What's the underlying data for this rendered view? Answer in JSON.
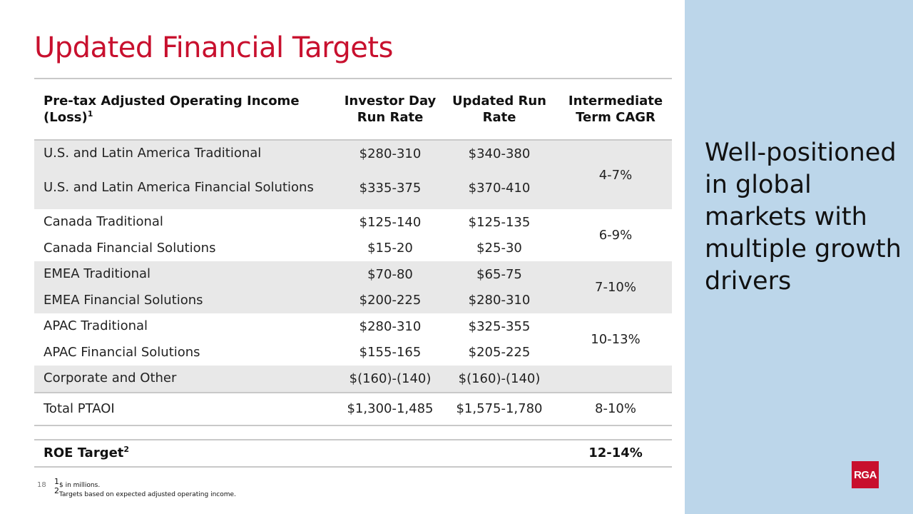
{
  "title": "Updated Financial Targets",
  "table": {
    "headers": {
      "segment": "Pre-tax Adjusted Operating Income (Loss)",
      "segment_sup": "1",
      "investor_day": "Investor Day Run Rate",
      "updated": "Updated Run Rate",
      "cagr": "Intermediate Term CAGR"
    },
    "groups": [
      {
        "cagr": "4-7%",
        "rows": [
          {
            "segment": "U.S. and Latin America Traditional",
            "investor_day": "$280-310",
            "updated": "$340-380"
          },
          {
            "segment": "U.S. and Latin America Financial Solutions",
            "investor_day": "$335-375",
            "updated": "$370-410"
          }
        ]
      },
      {
        "cagr": "6-9%",
        "rows": [
          {
            "segment": "Canada Traditional",
            "investor_day": "$125-140",
            "updated": "$125-135"
          },
          {
            "segment": "Canada Financial Solutions",
            "investor_day": "$15-20",
            "updated": "$25-30"
          }
        ]
      },
      {
        "cagr": "7-10%",
        "rows": [
          {
            "segment": "EMEA Traditional",
            "investor_day": "$70-80",
            "updated": "$65-75"
          },
          {
            "segment": "EMEA Financial Solutions",
            "investor_day": "$200-225",
            "updated": "$280-310"
          }
        ]
      },
      {
        "cagr": "10-13%",
        "rows": [
          {
            "segment": "APAC Traditional",
            "investor_day": "$280-310",
            "updated": "$325-355"
          },
          {
            "segment": "APAC Financial Solutions",
            "investor_day": "$155-165",
            "updated": "$205-225"
          }
        ]
      },
      {
        "cagr": "",
        "rows": [
          {
            "segment": "Corporate and Other",
            "investor_day": "$(160)-(140)",
            "updated": "$(160)-(140)"
          }
        ]
      }
    ],
    "total": {
      "segment": "Total PTAOI",
      "investor_day": "$1,300-1,485",
      "updated": "$1,575-1,780",
      "cagr": "8-10%"
    },
    "roe": {
      "label": "ROE Target",
      "label_sup": "2",
      "value": "12-14%"
    }
  },
  "side_text": "Well-positioned in global markets with multiple growth drivers",
  "logo_text": "RGA",
  "page_number": "18",
  "footnotes": [
    {
      "sup": "1",
      "text": "$ in millions."
    },
    {
      "sup": "2",
      "text": "Targets based on expected adjusted operating income."
    }
  ],
  "colors": {
    "accent": "#c8102e",
    "panel": "#bcd6ea",
    "shade": "#e8e8e8"
  }
}
